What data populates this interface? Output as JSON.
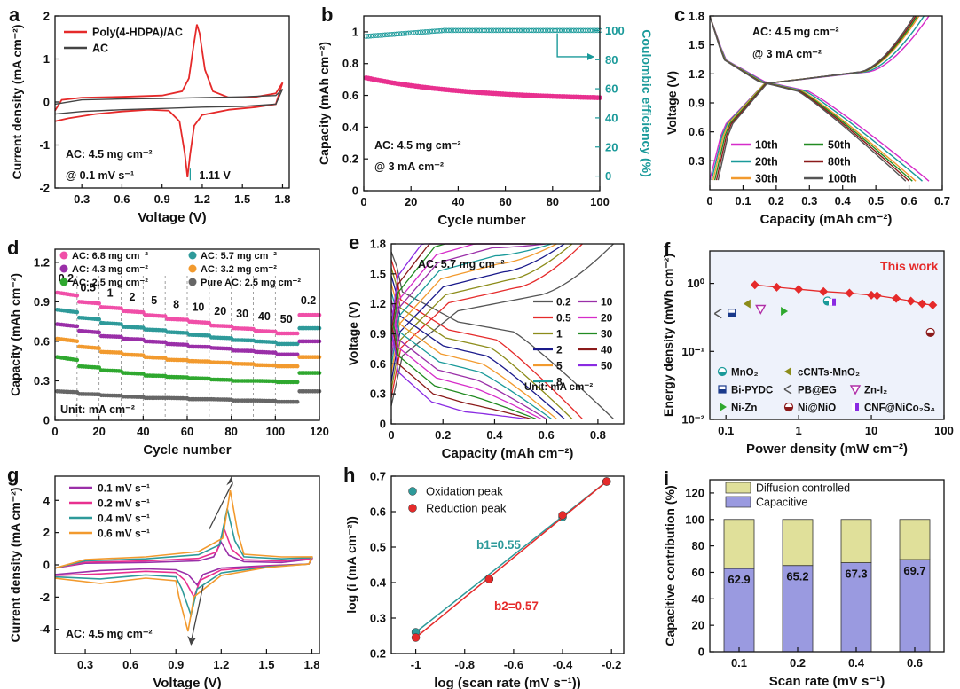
{
  "figure": {
    "width": 1082,
    "height": 777
  },
  "chart_data": [
    {
      "id": "a",
      "label": "a",
      "type": "line",
      "title": "",
      "xlabel": "Voltage (V)",
      "ylabel": "Current density (mA cm⁻²)",
      "xlim": [
        0.1,
        1.85
      ],
      "ylim": [
        -2.0,
        2.0
      ],
      "xticks": [
        0.3,
        0.6,
        0.9,
        1.2,
        1.5,
        1.8
      ],
      "yticks": [
        -2,
        -1,
        0,
        1,
        2
      ],
      "series": [
        {
          "name": "Poly(4-HDPA)/AC",
          "color": "#e52a2a",
          "points": [
            [
              0.1,
              -0.45
            ],
            [
              0.2,
              -0.38
            ],
            [
              0.4,
              -0.28
            ],
            [
              0.6,
              -0.22
            ],
            [
              0.8,
              -0.18
            ],
            [
              0.95,
              -0.2
            ],
            [
              1.03,
              -0.45
            ],
            [
              1.07,
              -1.2
            ],
            [
              1.09,
              -1.75
            ],
            [
              1.11,
              -1.2
            ],
            [
              1.14,
              -0.55
            ],
            [
              1.2,
              -0.3
            ],
            [
              1.4,
              -0.18
            ],
            [
              1.6,
              -0.12
            ],
            [
              1.75,
              -0.05
            ],
            [
              1.8,
              0.45
            ],
            [
              1.75,
              0.2
            ],
            [
              1.6,
              0.12
            ],
            [
              1.4,
              0.1
            ],
            [
              1.28,
              0.25
            ],
            [
              1.22,
              0.75
            ],
            [
              1.18,
              1.6
            ],
            [
              1.16,
              1.8
            ],
            [
              1.13,
              1.2
            ],
            [
              1.1,
              0.55
            ],
            [
              1.05,
              0.25
            ],
            [
              0.9,
              0.15
            ],
            [
              0.6,
              0.12
            ],
            [
              0.3,
              0.1
            ],
            [
              0.15,
              0.05
            ],
            [
              0.1,
              -0.2
            ]
          ]
        },
        {
          "name": "AC",
          "color": "#444444",
          "points": [
            [
              0.1,
              -0.28
            ],
            [
              0.3,
              -0.22
            ],
            [
              0.6,
              -0.18
            ],
            [
              0.9,
              -0.15
            ],
            [
              1.2,
              -0.12
            ],
            [
              1.5,
              -0.1
            ],
            [
              1.75,
              -0.05
            ],
            [
              1.8,
              0.3
            ],
            [
              1.75,
              0.15
            ],
            [
              1.5,
              0.12
            ],
            [
              1.2,
              0.1
            ],
            [
              0.9,
              0.08
            ],
            [
              0.6,
              0.07
            ],
            [
              0.3,
              0.05
            ],
            [
              0.1,
              -0.05
            ]
          ]
        }
      ],
      "annotations": [
        {
          "text": "AC: 4.5 mg cm⁻²"
        },
        {
          "text": "@ 0.1 mV s⁻¹"
        },
        {
          "text": "1.11 V",
          "x": 1.11,
          "y": -1.7
        }
      ],
      "legend": "top-left"
    },
    {
      "id": "b",
      "label": "b",
      "type": "scatter",
      "xlabel": "Cycle number",
      "ylabel": "Capacity (mAh cm⁻²)",
      "y2label": "Coulombic efficiency (%)",
      "xlim": [
        0,
        100
      ],
      "ylim": [
        0,
        1.1
      ],
      "y2lim": [
        -10,
        110
      ],
      "xticks": [
        0,
        20,
        40,
        60,
        80,
        100
      ],
      "yticks": [
        0.0,
        0.2,
        0.4,
        0.6,
        0.8,
        1.0
      ],
      "y2ticks": [
        0,
        20,
        40,
        60,
        80,
        100
      ],
      "series": [
        {
          "name": "Capacity",
          "color": "#e8308f",
          "axis": "left",
          "start": 0.71,
          "end": 0.57,
          "count": 100
        },
        {
          "name": "Coulombic efficiency",
          "color": "#1a9a9a",
          "axis": "right",
          "start": 96,
          "end": 100,
          "count": 100
        }
      ],
      "annotations": [
        {
          "text": "AC: 4.5 mg cm⁻²"
        },
        {
          "text": "@ 3 mA cm⁻²"
        }
      ]
    },
    {
      "id": "c",
      "label": "c",
      "type": "line",
      "xlabel": "Capacity (mAh cm⁻²)",
      "ylabel": "Voltage (V)",
      "xlim": [
        0.0,
        0.7
      ],
      "ylim": [
        0.0,
        1.8
      ],
      "xticks": [
        0.0,
        0.1,
        0.2,
        0.3,
        0.4,
        0.5,
        0.6,
        0.7
      ],
      "yticks": [
        0.3,
        0.6,
        0.9,
        1.2,
        1.5,
        1.8
      ],
      "series": [
        {
          "name": "10th",
          "color": "#d62cc9",
          "capacity": 0.66
        },
        {
          "name": "20th",
          "color": "#1a9a9a",
          "capacity": 0.64
        },
        {
          "name": "30th",
          "color": "#f29a2e",
          "capacity": 0.62
        },
        {
          "name": "50th",
          "color": "#228b22",
          "capacity": 0.61
        },
        {
          "name": "80th",
          "color": "#8b1a1a",
          "capacity": 0.6
        },
        {
          "name": "100th",
          "color": "#555555",
          "capacity": 0.59
        }
      ],
      "annotations": [
        {
          "text": "AC: 4.5 mg cm⁻²"
        },
        {
          "text": "@ 3 mA cm⁻²"
        }
      ]
    },
    {
      "id": "d",
      "label": "d",
      "type": "scatter",
      "xlabel": "Cycle number",
      "ylabel": "Capacity (mAh cm⁻²)",
      "xlim": [
        0,
        120
      ],
      "ylim": [
        0.0,
        1.3
      ],
      "xticks": [
        0,
        20,
        40,
        60,
        80,
        100,
        120
      ],
      "yticks": [
        0.0,
        0.3,
        0.6,
        0.9,
        1.2
      ],
      "rate_labels": [
        "0.2",
        "0.5",
        "1",
        "2",
        "5",
        "8",
        "10",
        "20",
        "30",
        "40",
        "50",
        "0.2"
      ],
      "rate_label_x": [
        5,
        15,
        25,
        35,
        45,
        55,
        65,
        75,
        85,
        95,
        105,
        115
      ],
      "series": [
        {
          "name": "AC: 6.8 mg cm⁻²",
          "color": "#f04fa8",
          "levels": [
            0.97,
            0.9,
            0.86,
            0.83,
            0.8,
            0.77,
            0.75,
            0.72,
            0.7,
            0.68,
            0.66,
            0.8
          ]
        },
        {
          "name": "AC: 5.7 mg cm⁻²",
          "color": "#2e9a9a",
          "levels": [
            0.84,
            0.78,
            0.74,
            0.71,
            0.69,
            0.67,
            0.65,
            0.63,
            0.61,
            0.6,
            0.58,
            0.7
          ]
        },
        {
          "name": "AC: 4.3 mg cm⁻²",
          "color": "#9a2fa8",
          "levels": [
            0.73,
            0.68,
            0.64,
            0.62,
            0.6,
            0.58,
            0.56,
            0.55,
            0.53,
            0.52,
            0.5,
            0.6
          ]
        },
        {
          "name": "AC: 3.2 mg cm⁻²",
          "color": "#f29a2e",
          "levels": [
            0.62,
            0.56,
            0.52,
            0.5,
            0.48,
            0.46,
            0.45,
            0.44,
            0.43,
            0.42,
            0.41,
            0.48
          ]
        },
        {
          "name": "AC: 2.5 mg cm⁻²",
          "color": "#2fa82f",
          "levels": [
            0.48,
            0.41,
            0.38,
            0.36,
            0.34,
            0.33,
            0.32,
            0.31,
            0.3,
            0.3,
            0.29,
            0.36
          ]
        },
        {
          "name": "Pure AC: 2.5 mg cm⁻²",
          "color": "#666666",
          "levels": [
            0.22,
            0.2,
            0.19,
            0.18,
            0.17,
            0.17,
            0.16,
            0.16,
            0.15,
            0.15,
            0.14,
            0.22
          ]
        }
      ],
      "annotations": [
        {
          "text": "Unit: mA cm⁻²"
        }
      ],
      "legend": "top"
    },
    {
      "id": "e",
      "label": "e",
      "type": "line",
      "xlabel": "Capacity (mAh cm⁻²)",
      "ylabel": "Voltage (V)",
      "xlim": [
        0.0,
        0.9
      ],
      "ylim": [
        0.0,
        1.8
      ],
      "xticks": [
        0.0,
        0.2,
        0.4,
        0.6,
        0.8
      ],
      "yticks": [
        0.0,
        0.3,
        0.6,
        0.9,
        1.2,
        1.5,
        1.8
      ],
      "series": [
        {
          "name": "0.2",
          "color": "#555555",
          "capacity": 0.86
        },
        {
          "name": "0.5",
          "color": "#e52a2a",
          "capacity": 0.74
        },
        {
          "name": "1",
          "color": "#8c8c1a",
          "capacity": 0.7
        },
        {
          "name": "2",
          "color": "#1a1a8b",
          "capacity": 0.67
        },
        {
          "name": "5",
          "color": "#f29a2e",
          "capacity": 0.64
        },
        {
          "name": "8",
          "color": "#1a9a9a",
          "capacity": 0.62
        },
        {
          "name": "10",
          "color": "#9a2fa8",
          "capacity": 0.6
        },
        {
          "name": "20",
          "color": "#d62cc9",
          "capacity": 0.58
        },
        {
          "name": "30",
          "color": "#228b22",
          "capacity": 0.56
        },
        {
          "name": "40",
          "color": "#8b1a1a",
          "capacity": 0.54
        },
        {
          "name": "50",
          "color": "#8a2be2",
          "capacity": 0.52
        }
      ],
      "legend_order": [
        "0.2",
        "10",
        "0.5",
        "20",
        "1",
        "30",
        "2",
        "40",
        "5",
        "50",
        "8"
      ],
      "annotations": [
        {
          "text": "AC: 5.7 mg cm⁻²"
        },
        {
          "text": "Unit: mA cm⁻²"
        }
      ]
    },
    {
      "id": "f",
      "label": "f",
      "type": "scatter",
      "xscale": "log",
      "yscale": "log",
      "xlabel": "Power density (mW cm⁻²)",
      "ylabel": "Energy density (mWh cm⁻²)",
      "xlim": [
        0.06,
        100
      ],
      "ylim": [
        0.01,
        3
      ],
      "xticks": [
        0.1,
        1,
        10,
        100
      ],
      "xticklabels": [
        "0.1",
        "1",
        "10",
        "100"
      ],
      "yticks": [
        0.01,
        0.1,
        1
      ],
      "yticklabels": [
        "10⁻²",
        "10⁻¹",
        "10⁰"
      ],
      "this_work": {
        "name": "This work",
        "color": "#e52a2a",
        "points": [
          [
            0.25,
            0.95
          ],
          [
            0.5,
            0.88
          ],
          [
            1.0,
            0.82
          ],
          [
            2.2,
            0.76
          ],
          [
            5,
            0.72
          ],
          [
            10,
            0.67
          ],
          [
            12,
            0.66
          ],
          [
            22,
            0.6
          ],
          [
            35,
            0.55
          ],
          [
            50,
            0.5
          ],
          [
            70,
            0.48
          ]
        ]
      },
      "references": [
        {
          "name": "MnO₂",
          "color": "#1a9a9a",
          "x": 2.5,
          "y": 0.55
        },
        {
          "name": "cCNTs-MnO₂",
          "color": "#8c8c1a",
          "x": 0.2,
          "y": 0.5
        },
        {
          "name": "Bi-PYDC",
          "color": "#1a3a8b",
          "x": 0.12,
          "y": 0.37
        },
        {
          "name": "PB@EG",
          "color": "#555555",
          "x": 0.08,
          "y": 0.36
        },
        {
          "name": "Zn-I₂",
          "color": "#b02fa8",
          "x": 0.3,
          "y": 0.42
        },
        {
          "name": "Ni-Zn",
          "color": "#2fa82f",
          "x": 0.62,
          "y": 0.39
        },
        {
          "name": "Ni@NiO",
          "color": "#8b1a1a",
          "x": 65,
          "y": 0.19
        },
        {
          "name": "CNF@NiCo₂S₄",
          "color": "#8a2be2",
          "x": 2.9,
          "y": 0.53
        }
      ]
    },
    {
      "id": "g",
      "label": "g",
      "type": "line",
      "xlabel": "Voltage (V)",
      "ylabel": "Current density (mA cm⁻²)",
      "xlim": [
        0.1,
        1.85
      ],
      "ylim": [
        -5.5,
        5.5
      ],
      "xticks": [
        0.3,
        0.6,
        0.9,
        1.2,
        1.5,
        1.8
      ],
      "yticks": [
        -4,
        -2,
        0,
        2,
        4
      ],
      "series": [
        {
          "name": "0.1 mV s⁻¹",
          "color": "#9a2fa8",
          "scale": 1.0
        },
        {
          "name": "0.2 mV s⁻¹",
          "color": "#e8308f",
          "scale": 1.6
        },
        {
          "name": "0.4 mV s⁻¹",
          "color": "#2e9a9a",
          "scale": 2.5
        },
        {
          "name": "0.6 mV s⁻¹",
          "color": "#f29a2e",
          "scale": 3.3
        }
      ],
      "annotations": [
        {
          "text": "AC: 4.5 mg cm⁻²"
        }
      ],
      "legend": "top-left"
    },
    {
      "id": "h",
      "label": "h",
      "type": "scatter",
      "xlabel": "log (scan rate (mV s⁻¹))",
      "ylabel": "log (i (mA cm⁻²))",
      "xlim": [
        -1.1,
        -0.15
      ],
      "ylim": [
        0.2,
        0.7
      ],
      "xticks": [
        -1.0,
        -0.8,
        -0.6,
        -0.4,
        -0.2
      ],
      "yticks": [
        0.2,
        0.3,
        0.4,
        0.5,
        0.6,
        0.7
      ],
      "series": [
        {
          "name": "Oxidation peak",
          "color": "#2e9a9a",
          "x": [
            -1.0,
            -0.7,
            -0.4,
            -0.22
          ],
          "y": [
            0.26,
            0.41,
            0.585,
            0.685
          ]
        },
        {
          "name": "Reduction peak",
          "color": "#e52a2a",
          "x": [
            -1.0,
            -0.7,
            -0.4,
            -0.22
          ],
          "y": [
            0.245,
            0.41,
            0.59,
            0.685
          ]
        }
      ],
      "annotations": [
        {
          "text": "b1=0.55",
          "color": "#2e9a9a"
        },
        {
          "text": "b2=0.57",
          "color": "#e52a2a"
        }
      ],
      "legend": "top-left"
    },
    {
      "id": "i",
      "label": "i",
      "type": "bar",
      "xlabel": "Scan rate (mV s⁻¹)",
      "ylabel": "Capacitive contribution (%)",
      "ylim": [
        0,
        130
      ],
      "yticks": [
        0,
        20,
        40,
        60,
        80,
        100,
        120
      ],
      "categories": [
        "0.1",
        "0.2",
        "0.4",
        "0.6"
      ],
      "series": [
        {
          "name": "Capacitive",
          "color": "#9a9ae0",
          "values": [
            62.9,
            65.2,
            67.3,
            69.7
          ]
        },
        {
          "name": "Diffusion controlled",
          "color": "#e0e09a",
          "values": [
            37.1,
            34.8,
            32.7,
            30.3
          ]
        }
      ],
      "data_labels": [
        "62.9",
        "65.2",
        "67.3",
        "69.7"
      ],
      "legend": "top-left"
    }
  ]
}
